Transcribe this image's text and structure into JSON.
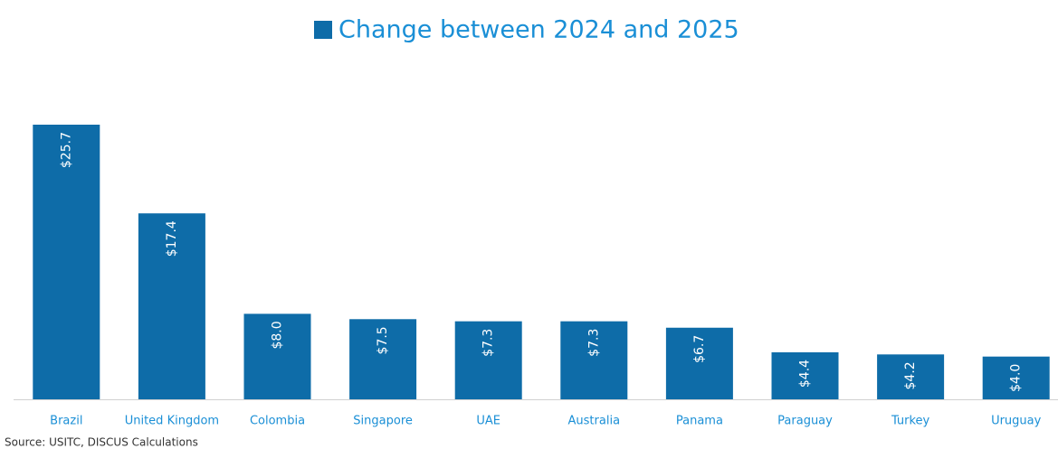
{
  "chart_data": {
    "type": "bar",
    "categories": [
      "Brazil",
      "United Kingdom",
      "Colombia",
      "Singapore",
      "UAE",
      "Australia",
      "Panama",
      "Paraguay",
      "Turkey",
      "Uruguay"
    ],
    "series": [
      {
        "name": "Change between 2024 and 2025",
        "color": "#0e6ca8",
        "values": [
          25.7,
          17.4,
          8.0,
          7.5,
          7.3,
          7.3,
          6.7,
          4.4,
          4.2,
          4.0
        ],
        "value_labels": [
          "$25.7",
          "$17.4",
          "$8.0",
          "$7.5",
          "$7.3",
          "$7.3",
          "$6.7",
          "$4.4",
          "$4.2",
          "$4.0"
        ]
      }
    ],
    "legend": "top",
    "source": "Source: USITC, DISCUS Calculations"
  }
}
